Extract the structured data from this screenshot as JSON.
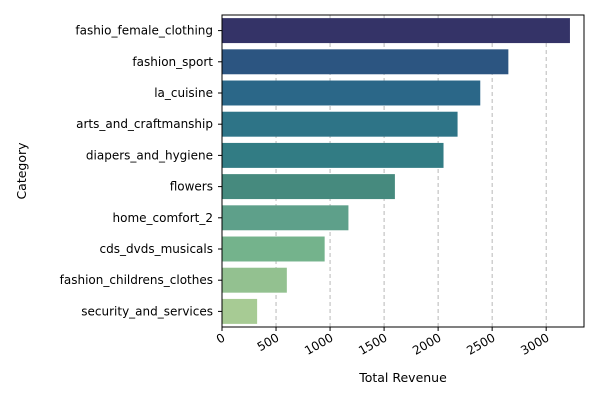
{
  "chart_data": {
    "type": "bar",
    "orientation": "horizontal",
    "title": "",
    "xlabel": "Total Revenue",
    "ylabel": "Category",
    "categories": [
      "fashio_female_clothing",
      "fashion_sport",
      "la_cuisine",
      "arts_and_craftmanship",
      "diapers_and_hygiene",
      "flowers",
      "home_comfort_2",
      "cds_dvds_musicals",
      "fashion_childrens_clothes",
      "security_and_services"
    ],
    "values": [
      3220,
      2650,
      2390,
      2180,
      2050,
      1600,
      1170,
      950,
      600,
      325
    ],
    "colors": [
      "#343367",
      "#2c5581",
      "#2b6788",
      "#2e7487",
      "#327c84",
      "#468a7e",
      "#5ea08a",
      "#74b38c",
      "#93c190",
      "#a7cb94"
    ],
    "xlim": [
      0,
      3350
    ],
    "xticks": [
      0,
      500,
      1000,
      1500,
      2000,
      2500,
      3000
    ],
    "xtick_labels": [
      "0",
      "500",
      "1000",
      "1500",
      "2000",
      "2500",
      "3000"
    ],
    "grid": "x-dashed",
    "legend": "none"
  }
}
